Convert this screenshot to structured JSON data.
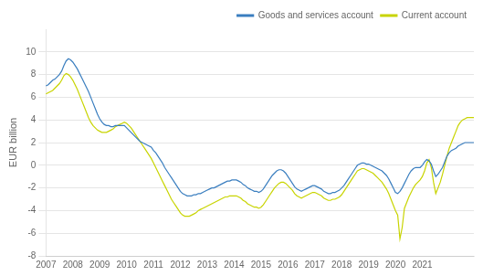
{
  "chart_data": {
    "type": "line",
    "ylabel": "EUR billion",
    "categories": [
      "2007",
      null,
      null,
      null,
      null,
      null,
      null,
      null,
      null,
      null,
      null,
      null,
      "2008",
      null,
      null,
      null,
      null,
      null,
      null,
      null,
      null,
      null,
      null,
      null,
      "2009",
      null,
      null,
      null,
      null,
      null,
      null,
      null,
      null,
      null,
      null,
      null,
      "2010",
      null,
      null,
      null,
      null,
      null,
      null,
      null,
      null,
      null,
      null,
      null,
      "2011",
      null,
      null,
      null,
      null,
      null,
      null,
      null,
      null,
      null,
      null,
      null,
      "2012",
      null,
      null,
      null,
      null,
      null,
      null,
      null,
      null,
      null,
      null,
      null,
      "2013",
      null,
      null,
      null,
      null,
      null,
      null,
      null,
      null,
      null,
      null,
      null,
      "2014",
      null,
      null,
      null,
      null,
      null,
      null,
      null,
      null,
      null,
      null,
      null,
      "2015",
      null,
      null,
      null,
      null,
      null,
      null,
      null,
      null,
      null,
      null,
      null,
      "2016",
      null,
      null,
      null,
      null,
      null,
      null,
      null,
      null,
      null,
      null,
      null,
      "2017",
      null,
      null,
      null,
      null,
      null,
      null,
      null,
      null,
      null,
      null,
      null,
      "2018",
      null,
      null,
      null,
      null,
      null,
      null,
      null,
      null,
      null,
      null,
      null,
      "2019",
      null,
      null,
      null,
      null,
      null,
      null,
      null,
      null,
      null,
      null,
      null,
      "2020",
      null,
      null,
      null,
      null,
      null,
      null,
      null,
      null,
      null,
      null,
      null,
      "2021",
      null,
      null,
      null,
      null,
      null,
      null,
      null,
      null,
      null,
      null,
      null,
      null,
      null,
      null,
      null,
      null,
      null,
      null,
      null,
      null,
      null,
      null,
      null
    ],
    "series": [
      {
        "name": "Goods and services account",
        "color": "#3a7ebf",
        "values": [
          7.0,
          7.1,
          7.3,
          7.5,
          7.6,
          7.8,
          8.0,
          8.3,
          8.8,
          9.2,
          9.4,
          9.3,
          9.1,
          8.8,
          8.5,
          8.1,
          7.7,
          7.3,
          6.9,
          6.5,
          6.0,
          5.5,
          5.0,
          4.5,
          4.1,
          3.8,
          3.6,
          3.5,
          3.5,
          3.4,
          3.4,
          3.5,
          3.5,
          3.5,
          3.5,
          3.5,
          3.3,
          3.1,
          2.9,
          2.7,
          2.5,
          2.3,
          2.1,
          2.0,
          1.9,
          1.8,
          1.7,
          1.6,
          1.3,
          1.1,
          0.8,
          0.5,
          0.2,
          -0.2,
          -0.5,
          -0.8,
          -1.1,
          -1.4,
          -1.7,
          -2.0,
          -2.3,
          -2.5,
          -2.6,
          -2.7,
          -2.7,
          -2.7,
          -2.6,
          -2.6,
          -2.5,
          -2.5,
          -2.4,
          -2.3,
          -2.2,
          -2.1,
          -2.0,
          -2.0,
          -1.9,
          -1.8,
          -1.7,
          -1.6,
          -1.5,
          -1.4,
          -1.4,
          -1.3,
          -1.3,
          -1.3,
          -1.4,
          -1.5,
          -1.7,
          -1.8,
          -2.0,
          -2.1,
          -2.2,
          -2.3,
          -2.3,
          -2.4,
          -2.3,
          -2.1,
          -1.8,
          -1.5,
          -1.2,
          -0.9,
          -0.7,
          -0.5,
          -0.4,
          -0.4,
          -0.5,
          -0.7,
          -1.0,
          -1.3,
          -1.6,
          -1.9,
          -2.1,
          -2.2,
          -2.3,
          -2.2,
          -2.1,
          -2.0,
          -1.9,
          -1.8,
          -1.8,
          -1.9,
          -2.0,
          -2.1,
          -2.3,
          -2.4,
          -2.5,
          -2.5,
          -2.4,
          -2.4,
          -2.3,
          -2.2,
          -2.0,
          -1.8,
          -1.5,
          -1.2,
          -0.9,
          -0.6,
          -0.3,
          0.0,
          0.1,
          0.2,
          0.2,
          0.1,
          0.1,
          0.0,
          -0.1,
          -0.2,
          -0.3,
          -0.4,
          -0.5,
          -0.7,
          -0.9,
          -1.2,
          -1.6,
          -2.0,
          -2.4,
          -2.5,
          -2.3,
          -2.0,
          -1.6,
          -1.2,
          -0.8,
          -0.5,
          -0.3,
          -0.2,
          -0.2,
          -0.2,
          0.0,
          0.3,
          0.5,
          0.4,
          0.1,
          -0.5,
          -1.0,
          -0.8,
          -0.5,
          -0.2,
          0.3,
          0.8,
          1.1,
          1.3,
          1.4,
          1.5,
          1.7,
          1.8,
          1.9,
          2.0,
          2.0,
          2.0,
          2.0,
          2.0
        ]
      },
      {
        "name": "Current account",
        "color": "#c8d400",
        "values": [
          6.3,
          6.4,
          6.5,
          6.6,
          6.8,
          7.0,
          7.2,
          7.5,
          7.9,
          8.1,
          8.0,
          7.8,
          7.5,
          7.1,
          6.7,
          6.2,
          5.7,
          5.2,
          4.7,
          4.2,
          3.8,
          3.5,
          3.3,
          3.1,
          3.0,
          2.9,
          2.9,
          2.9,
          3.0,
          3.1,
          3.2,
          3.4,
          3.5,
          3.6,
          3.7,
          3.8,
          3.7,
          3.5,
          3.3,
          3.0,
          2.7,
          2.4,
          2.1,
          1.8,
          1.5,
          1.2,
          0.9,
          0.6,
          0.2,
          -0.2,
          -0.6,
          -1.0,
          -1.4,
          -1.8,
          -2.2,
          -2.6,
          -3.0,
          -3.3,
          -3.6,
          -3.9,
          -4.2,
          -4.4,
          -4.5,
          -4.5,
          -4.5,
          -4.4,
          -4.3,
          -4.2,
          -4.0,
          -3.9,
          -3.8,
          -3.7,
          -3.6,
          -3.5,
          -3.4,
          -3.3,
          -3.2,
          -3.1,
          -3.0,
          -2.9,
          -2.8,
          -2.8,
          -2.7,
          -2.7,
          -2.7,
          -2.7,
          -2.8,
          -2.9,
          -3.1,
          -3.2,
          -3.4,
          -3.5,
          -3.6,
          -3.7,
          -3.7,
          -3.8,
          -3.7,
          -3.5,
          -3.2,
          -2.9,
          -2.6,
          -2.3,
          -2.0,
          -1.8,
          -1.6,
          -1.5,
          -1.5,
          -1.6,
          -1.8,
          -2.0,
          -2.2,
          -2.5,
          -2.7,
          -2.8,
          -2.9,
          -2.8,
          -2.7,
          -2.6,
          -2.5,
          -2.4,
          -2.4,
          -2.5,
          -2.6,
          -2.7,
          -2.9,
          -3.0,
          -3.1,
          -3.1,
          -3.0,
          -3.0,
          -2.9,
          -2.8,
          -2.6,
          -2.3,
          -2.0,
          -1.7,
          -1.4,
          -1.1,
          -0.8,
          -0.5,
          -0.4,
          -0.3,
          -0.3,
          -0.4,
          -0.5,
          -0.6,
          -0.7,
          -0.9,
          -1.1,
          -1.3,
          -1.5,
          -1.8,
          -2.1,
          -2.5,
          -3.0,
          -3.5,
          -4.0,
          -4.4,
          -6.5,
          -5.5,
          -3.8,
          -3.3,
          -2.8,
          -2.4,
          -2.0,
          -1.7,
          -1.5,
          -1.3,
          -1.0,
          -0.5,
          0.2,
          0.5,
          -0.2,
          -1.5,
          -2.5,
          -2.0,
          -1.5,
          -0.8,
          0.0,
          0.8,
          1.5,
          2.0,
          2.5,
          3.0,
          3.5,
          3.8,
          4.0,
          4.1,
          4.2,
          4.2,
          4.2,
          4.2
        ]
      }
    ],
    "ylim": [
      -8,
      12
    ],
    "yticks": [
      -8,
      -6,
      -4,
      -2,
      0,
      2,
      4,
      6,
      8,
      10
    ],
    "grid": "y",
    "legend": "upper right"
  }
}
